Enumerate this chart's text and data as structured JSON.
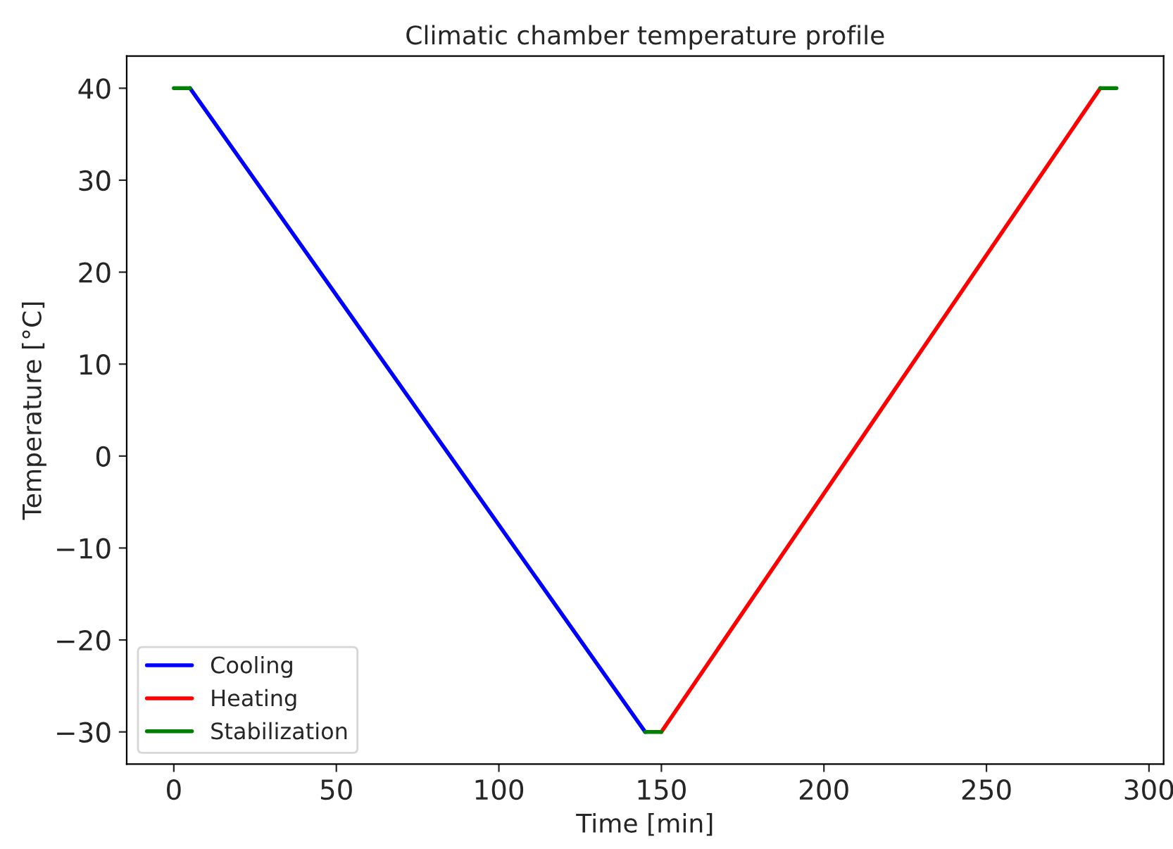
{
  "chart_data": {
    "type": "line",
    "title": "Climatic chamber temperature profile",
    "xlabel": "Time [min]",
    "ylabel": "Temperature [°C]",
    "series": [
      {
        "name": "Cooling",
        "color": "#0000ff",
        "x": [
          5,
          145
        ],
        "values": [
          40,
          -30
        ]
      },
      {
        "name": "Heating",
        "color": "#ff0000",
        "x": [
          150,
          285
        ],
        "values": [
          -30,
          40
        ]
      },
      {
        "name": "Stabilization",
        "color": "#008000",
        "x": [
          0,
          5,
          75,
          145,
          150,
          217,
          285,
          290
        ],
        "values": [
          40,
          40,
          null,
          -30,
          -30,
          null,
          40,
          40
        ]
      }
    ],
    "xlim": [
      -14.5,
      304.5
    ],
    "ylim": [
      -33.5,
      43.5
    ],
    "xticks": [
      0,
      50,
      100,
      150,
      200,
      250,
      300
    ],
    "yticks": [
      -30,
      -20,
      -10,
      0,
      10,
      20,
      30,
      40
    ],
    "grid": false,
    "legend": "bottom left",
    "marker": "none",
    "line_style": "solid"
  }
}
